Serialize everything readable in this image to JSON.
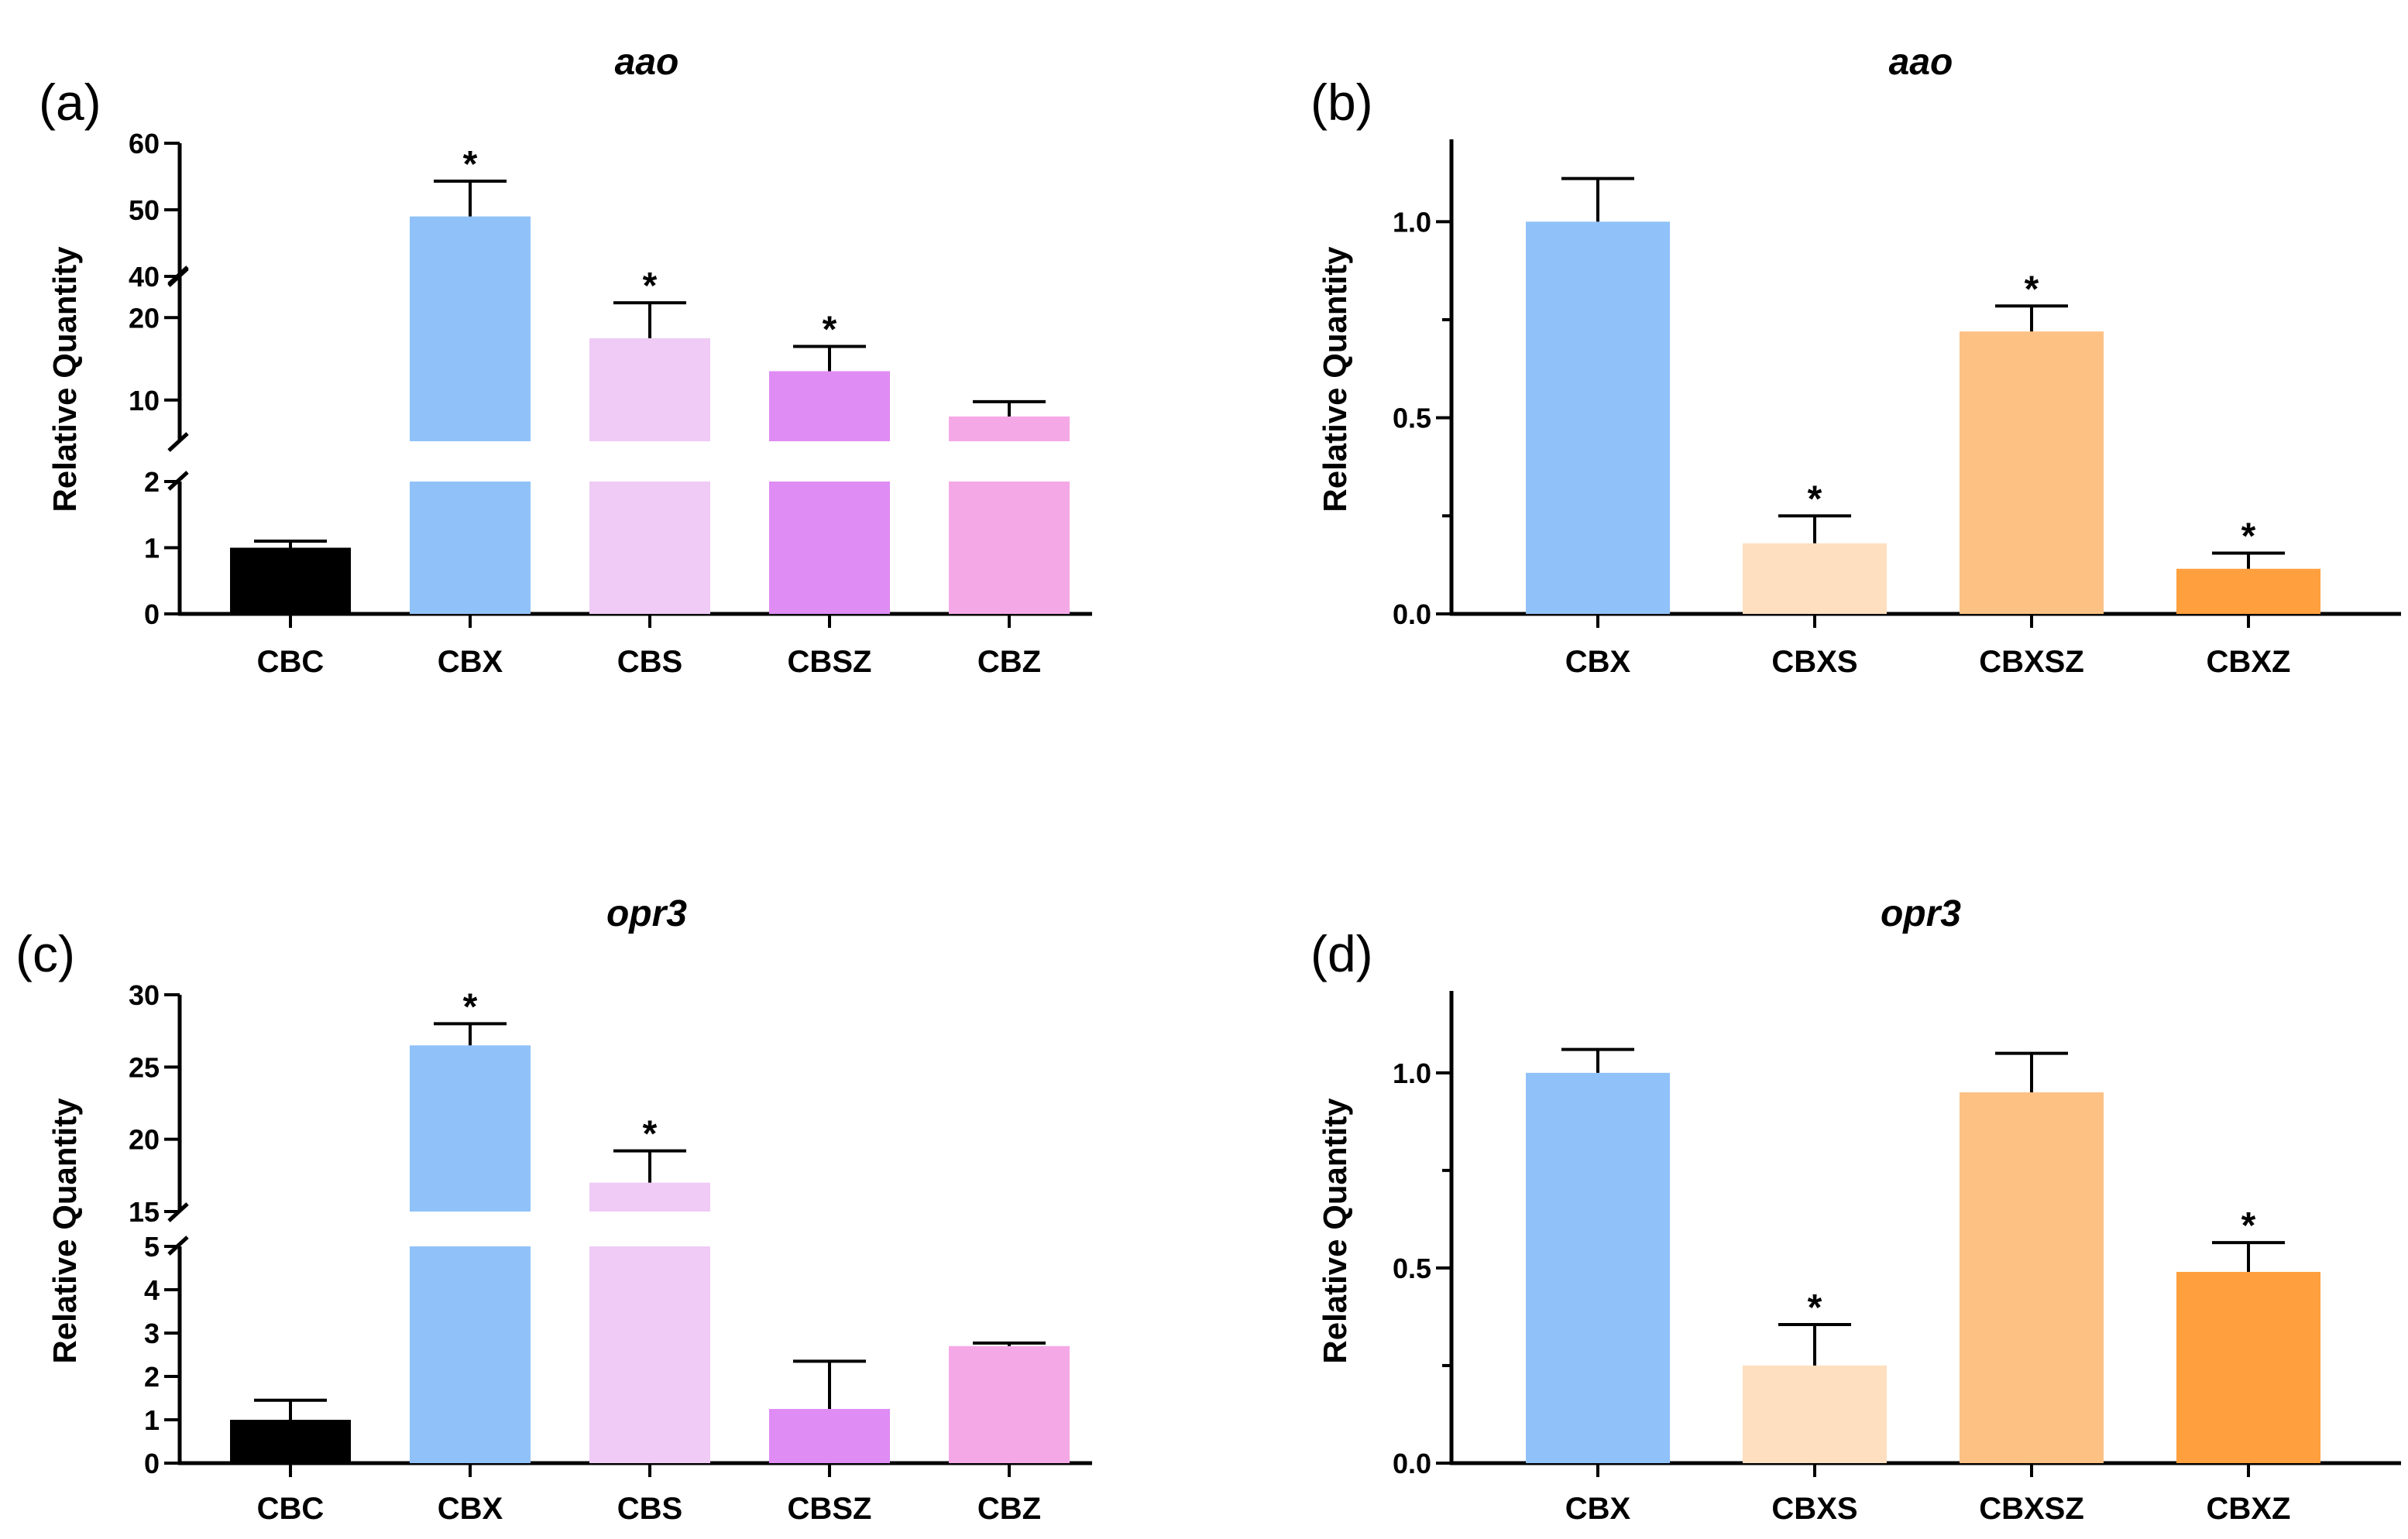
{
  "chart_data": [
    {
      "id": "a",
      "panel_label": "(a)",
      "type": "bar",
      "title": "aao",
      "ylabel": "Relative Quantity",
      "categories": [
        "CBC",
        "CBX",
        "CBS",
        "CBSZ",
        "CBZ"
      ],
      "values": [
        1.0,
        49,
        17.5,
        13.5,
        8
      ],
      "errors": [
        0.1,
        5.3,
        4.3,
        3.0,
        1.8
      ],
      "significant": [
        false,
        true,
        true,
        true,
        false
      ],
      "colors": [
        "#000000",
        "#90C2F9",
        "#EFCBF5",
        "#DF8CF4",
        "#F5A8E6"
      ],
      "broken_axis": true,
      "segments": [
        {
          "range": [
            0,
            2
          ],
          "ticks": [
            0,
            1,
            2
          ]
        },
        {
          "range": [
            5,
            25
          ],
          "ticks": [
            10,
            20
          ]
        },
        {
          "range": [
            40,
            60
          ],
          "ticks": [
            40,
            50,
            60
          ]
        }
      ]
    },
    {
      "id": "b",
      "panel_label": "(b)",
      "type": "bar",
      "title": "aao",
      "ylabel": "Relative Quantity",
      "categories": [
        "CBX",
        "CBXS",
        "CBXSZ",
        "CBXZ"
      ],
      "values": [
        1.0,
        0.18,
        0.72,
        0.115
      ],
      "errors": [
        0.11,
        0.07,
        0.065,
        0.04
      ],
      "significant": [
        false,
        true,
        true,
        true
      ],
      "colors": [
        "#90C2F9",
        "#FEDFBF",
        "#FDC184",
        "#FF9F3E"
      ],
      "broken_axis": false,
      "ylim": [
        0,
        1.2
      ],
      "yticks": [
        0,
        0.5,
        1
      ],
      "ytick_labels": [
        "0.0",
        "0.5",
        "1.0"
      ],
      "minor_ticks": [
        0.25,
        0.75
      ]
    },
    {
      "id": "c",
      "panel_label": "(c)",
      "type": "bar",
      "title": "opr3",
      "ylabel": "Relative Quantity",
      "categories": [
        "CBC",
        "CBX",
        "CBS",
        "CBSZ",
        "CBZ"
      ],
      "values": [
        1.0,
        26.5,
        17,
        1.25,
        2.7
      ],
      "errors": [
        0.45,
        1.5,
        2.2,
        1.1,
        0.07
      ],
      "significant": [
        false,
        true,
        true,
        false,
        false
      ],
      "colors": [
        "#000000",
        "#90C2F9",
        "#EFCBF5",
        "#DF8CF4",
        "#F5A8E6"
      ],
      "broken_axis": true,
      "segments": [
        {
          "range": [
            0,
            5
          ],
          "ticks": [
            0,
            1,
            2,
            3,
            4,
            5
          ]
        },
        {
          "range": [
            15,
            30
          ],
          "ticks": [
            15,
            20,
            25,
            30
          ]
        }
      ]
    },
    {
      "id": "d",
      "panel_label": "(d)",
      "type": "bar",
      "title": "opr3",
      "ylabel": "Relative Quantity",
      "categories": [
        "CBX",
        "CBXS",
        "CBXSZ",
        "CBXZ"
      ],
      "values": [
        1.0,
        0.25,
        0.95,
        0.49
      ],
      "errors": [
        0.06,
        0.105,
        0.1,
        0.075
      ],
      "significant": [
        false,
        true,
        false,
        true
      ],
      "colors": [
        "#90C2F9",
        "#FEDFBF",
        "#FDC184",
        "#FF9F3E"
      ],
      "broken_axis": false,
      "ylim": [
        0,
        1.2
      ],
      "yticks": [
        0,
        0.5,
        1
      ],
      "ytick_labels": [
        "0.0",
        "0.5",
        "1.0"
      ],
      "minor_ticks": [
        0.25,
        0.75
      ]
    }
  ]
}
